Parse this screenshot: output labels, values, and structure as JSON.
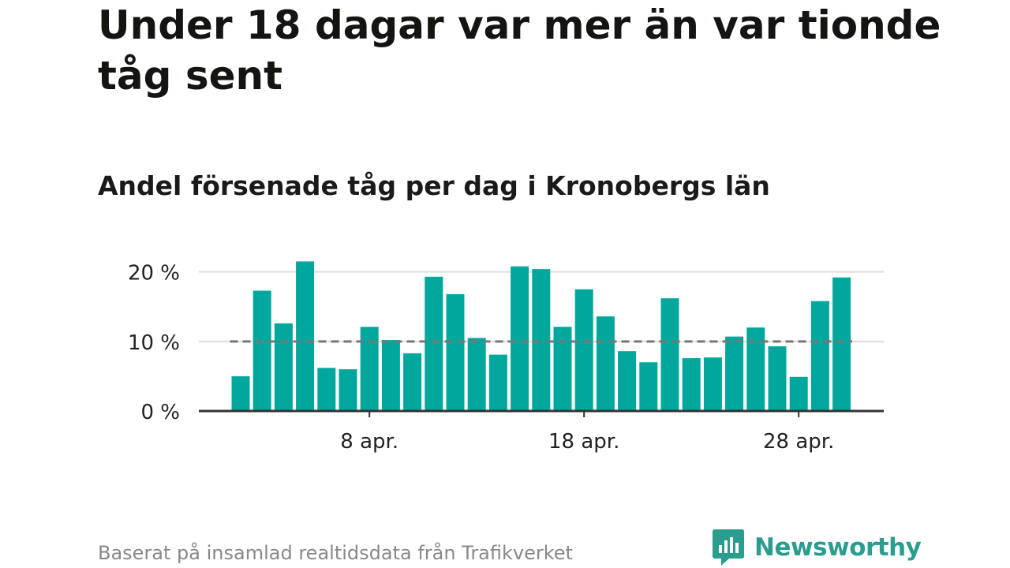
{
  "title": "Under 18 dagar var mer än var tionde tåg sent",
  "subtitle": "Andel försenade tåg per dag i Kronobergs län",
  "footer": "Baserat på insamlad realtidsdata från Trafikverket",
  "brand": "Newsworthy",
  "colors": {
    "bar": "#00a79d",
    "reference_line": "#777777",
    "grid": "#dddddd",
    "axis": "#333333",
    "brand": "#2a9d8f",
    "footer": "#888888"
  },
  "chart_data": {
    "type": "bar",
    "x": [
      "2 apr.",
      "3 apr.",
      "4 apr.",
      "5 apr.",
      "6 apr.",
      "7 apr.",
      "8 apr.",
      "9 apr.",
      "10 apr.",
      "11 apr.",
      "12 apr.",
      "13 apr.",
      "14 apr.",
      "15 apr.",
      "16 apr.",
      "17 apr.",
      "18 apr.",
      "19 apr.",
      "20 apr.",
      "21 apr.",
      "22 apr.",
      "23 apr.",
      "24 apr.",
      "25 apr.",
      "26 apr.",
      "27 apr.",
      "28 apr.",
      "29 apr.",
      "30 apr."
    ],
    "values": [
      5.0,
      17.3,
      12.6,
      21.5,
      6.2,
      6.0,
      12.1,
      10.2,
      8.3,
      19.3,
      16.8,
      10.5,
      8.1,
      20.8,
      20.4,
      12.1,
      17.5,
      13.6,
      8.6,
      7.0,
      16.2,
      7.6,
      7.7,
      10.7,
      12.0,
      9.3,
      4.9,
      15.8,
      19.2
    ],
    "x_tick_labels": [
      "8 apr.",
      "18 apr.",
      "28 apr."
    ],
    "y_tick_labels": [
      "0 %",
      "10 %",
      "20 %"
    ],
    "y_ticks": [
      0,
      10,
      20
    ],
    "ylim": [
      0,
      22
    ],
    "reference_line": 10,
    "grid": true,
    "xlabel": "",
    "ylabel": ""
  }
}
